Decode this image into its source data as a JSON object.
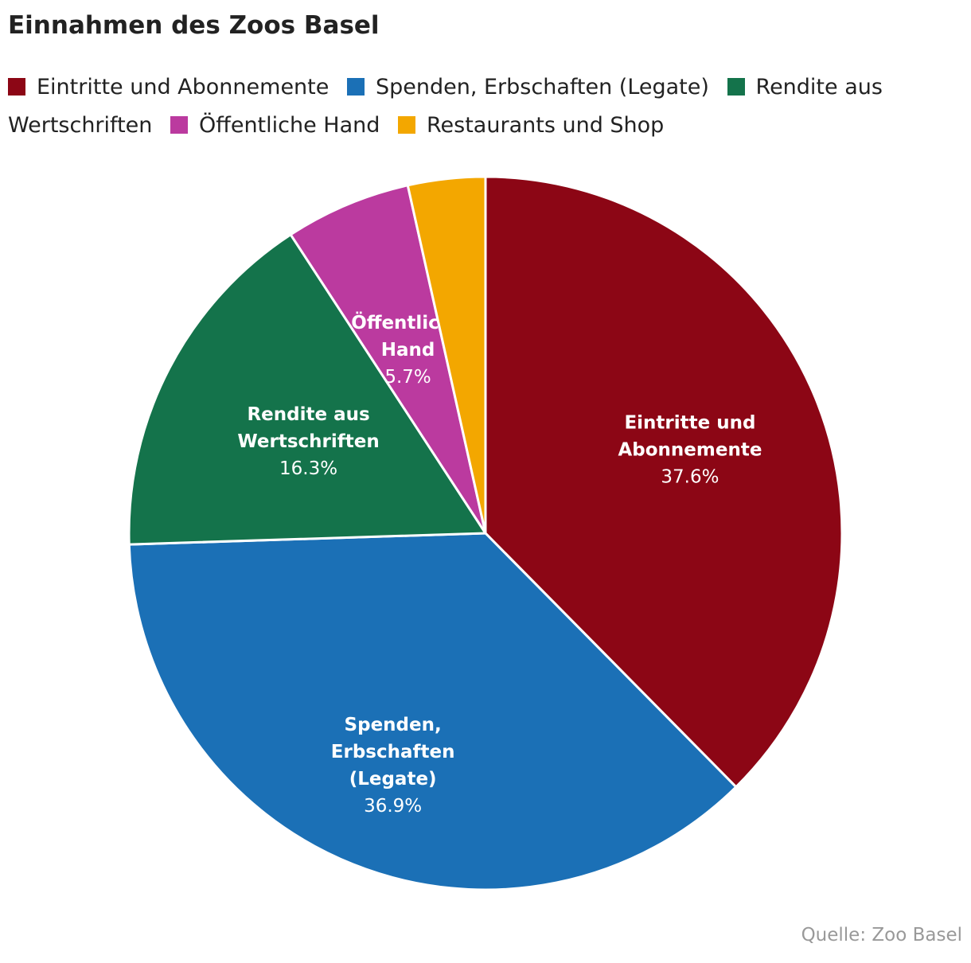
{
  "chart_data": {
    "type": "pie",
    "title": "Einnahmen des Zoos Basel",
    "categories": [
      "Eintritte und Abonnemente",
      "Spenden, Erbschaften (Legate)",
      "Rendite aus Wertschriften",
      "Öffentliche Hand",
      "Restaurants und Shop"
    ],
    "values": [
      37.6,
      36.9,
      16.3,
      5.7,
      3.5
    ],
    "value_labels": [
      "37.6%",
      "36.9%",
      "16.3%",
      "5.7%",
      ""
    ],
    "slice_label_lines": [
      [
        "Eintritte und",
        "Abonnemente"
      ],
      [
        "Spenden,",
        "Erbschaften",
        "(Legate)"
      ],
      [
        "Rendite aus",
        "Wertschriften"
      ],
      [
        "Öffentliche",
        "Hand"
      ],
      []
    ],
    "colors": [
      "#8c0615",
      "#1b70b6",
      "#14734b",
      "#bb3a9f",
      "#f3a700"
    ],
    "legend_placement": "top-left",
    "source": "Quelle: Zoo Basel"
  }
}
